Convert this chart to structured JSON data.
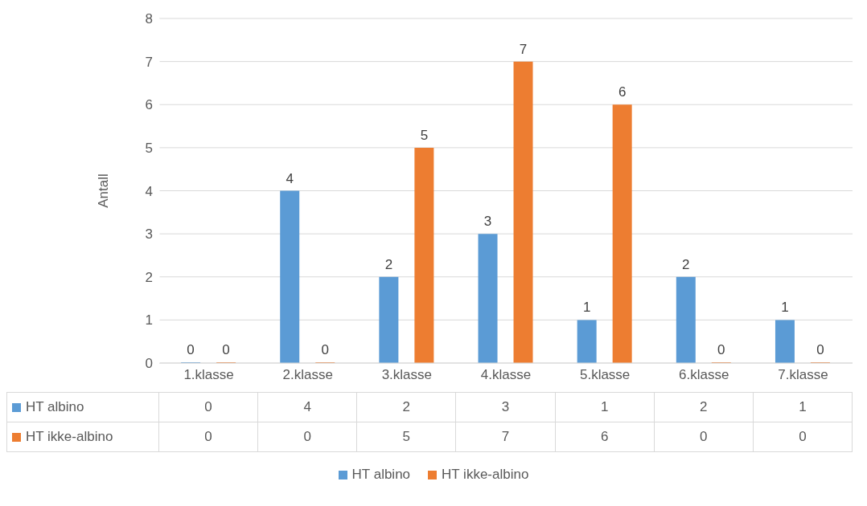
{
  "chart_data": {
    "type": "bar",
    "ylabel": "Antall",
    "categories": [
      "1.klasse",
      "2.klasse",
      "3.klasse",
      "4.klasse",
      "5.klasse",
      "6.klasse",
      "7.klasse"
    ],
    "series": [
      {
        "name": "HT albino",
        "color": "#5b9bd5",
        "values": [
          0,
          4,
          2,
          3,
          1,
          2,
          1
        ],
        "value_labels": [
          "0",
          "4",
          "2",
          "3",
          "1",
          "2",
          "1"
        ]
      },
      {
        "name": "HT ikke-albino",
        "color": "#ed7d31",
        "values": [
          0,
          0,
          5,
          7,
          6,
          0,
          0
        ],
        "value_labels": [
          "0",
          "0",
          "5",
          "7",
          "6",
          "0",
          "0"
        ]
      }
    ],
    "ylim": [
      0,
      8
    ],
    "yticks": [
      0,
      1,
      2,
      3,
      4,
      5,
      6,
      7,
      8
    ],
    "grid": "y",
    "legend": "bottom"
  }
}
